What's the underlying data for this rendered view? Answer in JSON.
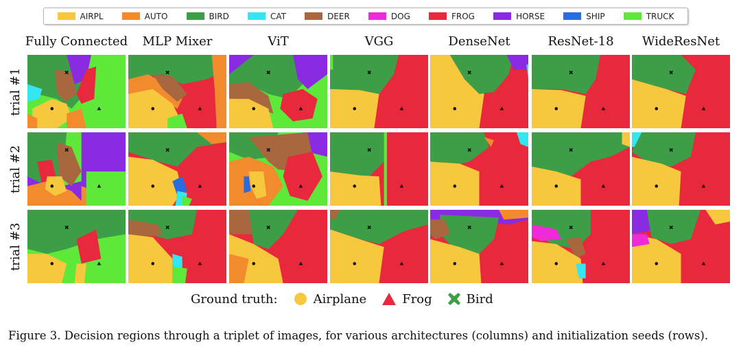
{
  "legend": [
    {
      "label": "AIRPL",
      "color": "#f7c73d"
    },
    {
      "label": "AUTO",
      "color": "#f28a2e"
    },
    {
      "label": "BIRD",
      "color": "#3e9e47"
    },
    {
      "label": "CAT",
      "color": "#33e6f0"
    },
    {
      "label": "DEER",
      "color": "#a8673f"
    },
    {
      "label": "DOG",
      "color": "#ef2ad8"
    },
    {
      "label": "FROG",
      "color": "#e8283d"
    },
    {
      "label": "HORSE",
      "color": "#8a2be2"
    },
    {
      "label": "SHIP",
      "color": "#2a6be0"
    },
    {
      "label": "TRUCK",
      "color": "#5ee83a"
    }
  ],
  "columns": [
    "Fully Connected",
    "MLP Mixer",
    "ViT",
    "VGG",
    "DenseNet",
    "ResNet-18",
    "WideResNet"
  ],
  "rows": [
    "trial #1",
    "trial #2",
    "trial #3"
  ],
  "ground_truth": {
    "label": "Ground truth:",
    "items": [
      {
        "label": "Airplane",
        "marker": "circle",
        "color": "#f7c73d"
      },
      {
        "label": "Frog",
        "marker": "triangle",
        "color": "#e8283d"
      },
      {
        "label": "Bird",
        "marker": "cross",
        "color": "#3e9e47"
      }
    ]
  },
  "caption": "Figure 3. Decision regions through a triplet of images, for various architectures (columns) and initialization seeds (rows)."
}
